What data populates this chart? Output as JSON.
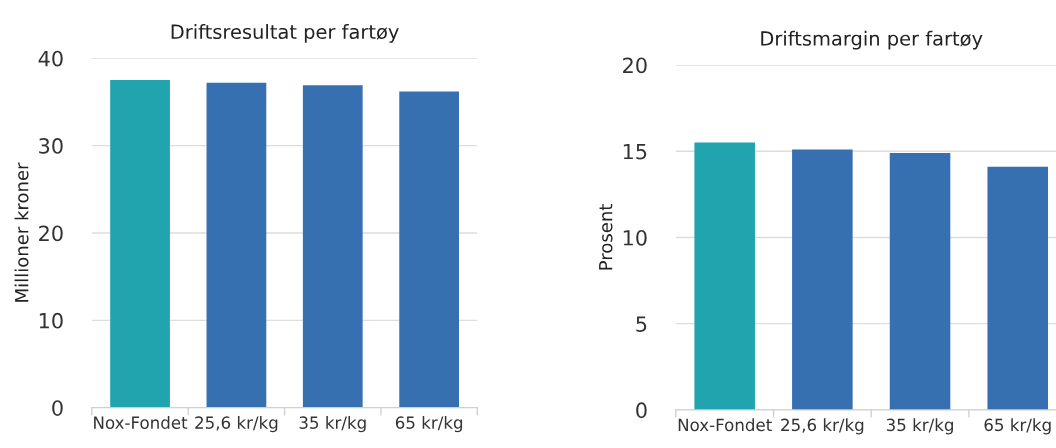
{
  "chart_data": [
    {
      "type": "bar",
      "title": "Driftsresultat per fartøy",
      "ylabel": "Millioner kroner",
      "categories": [
        "Nox-Fondet",
        "25,6 kr/kg",
        "35 kr/kg",
        "65 kr/kg"
      ],
      "values": [
        37.5,
        37.2,
        36.9,
        36.2
      ],
      "colors": [
        "#22a4ae",
        "#3670b0",
        "#3670b0",
        "#3670b0"
      ],
      "ylim": [
        0,
        40
      ],
      "yticks": [
        0,
        10,
        20,
        30,
        40
      ],
      "grid": "y"
    },
    {
      "type": "bar",
      "title": "Driftsmargin per fartøy",
      "ylabel": "Prosent",
      "categories": [
        "Nox-Fondet",
        "25,6 kr/kg",
        "35 kr/kg",
        "65 kr/kg"
      ],
      "values": [
        15.5,
        15.1,
        14.9,
        14.1
      ],
      "colors": [
        "#22a4ae",
        "#3670b0",
        "#3670b0",
        "#3670b0"
      ],
      "ylim": [
        0,
        20
      ],
      "yticks": [
        0,
        5,
        10,
        15,
        20
      ],
      "grid": "y"
    }
  ]
}
